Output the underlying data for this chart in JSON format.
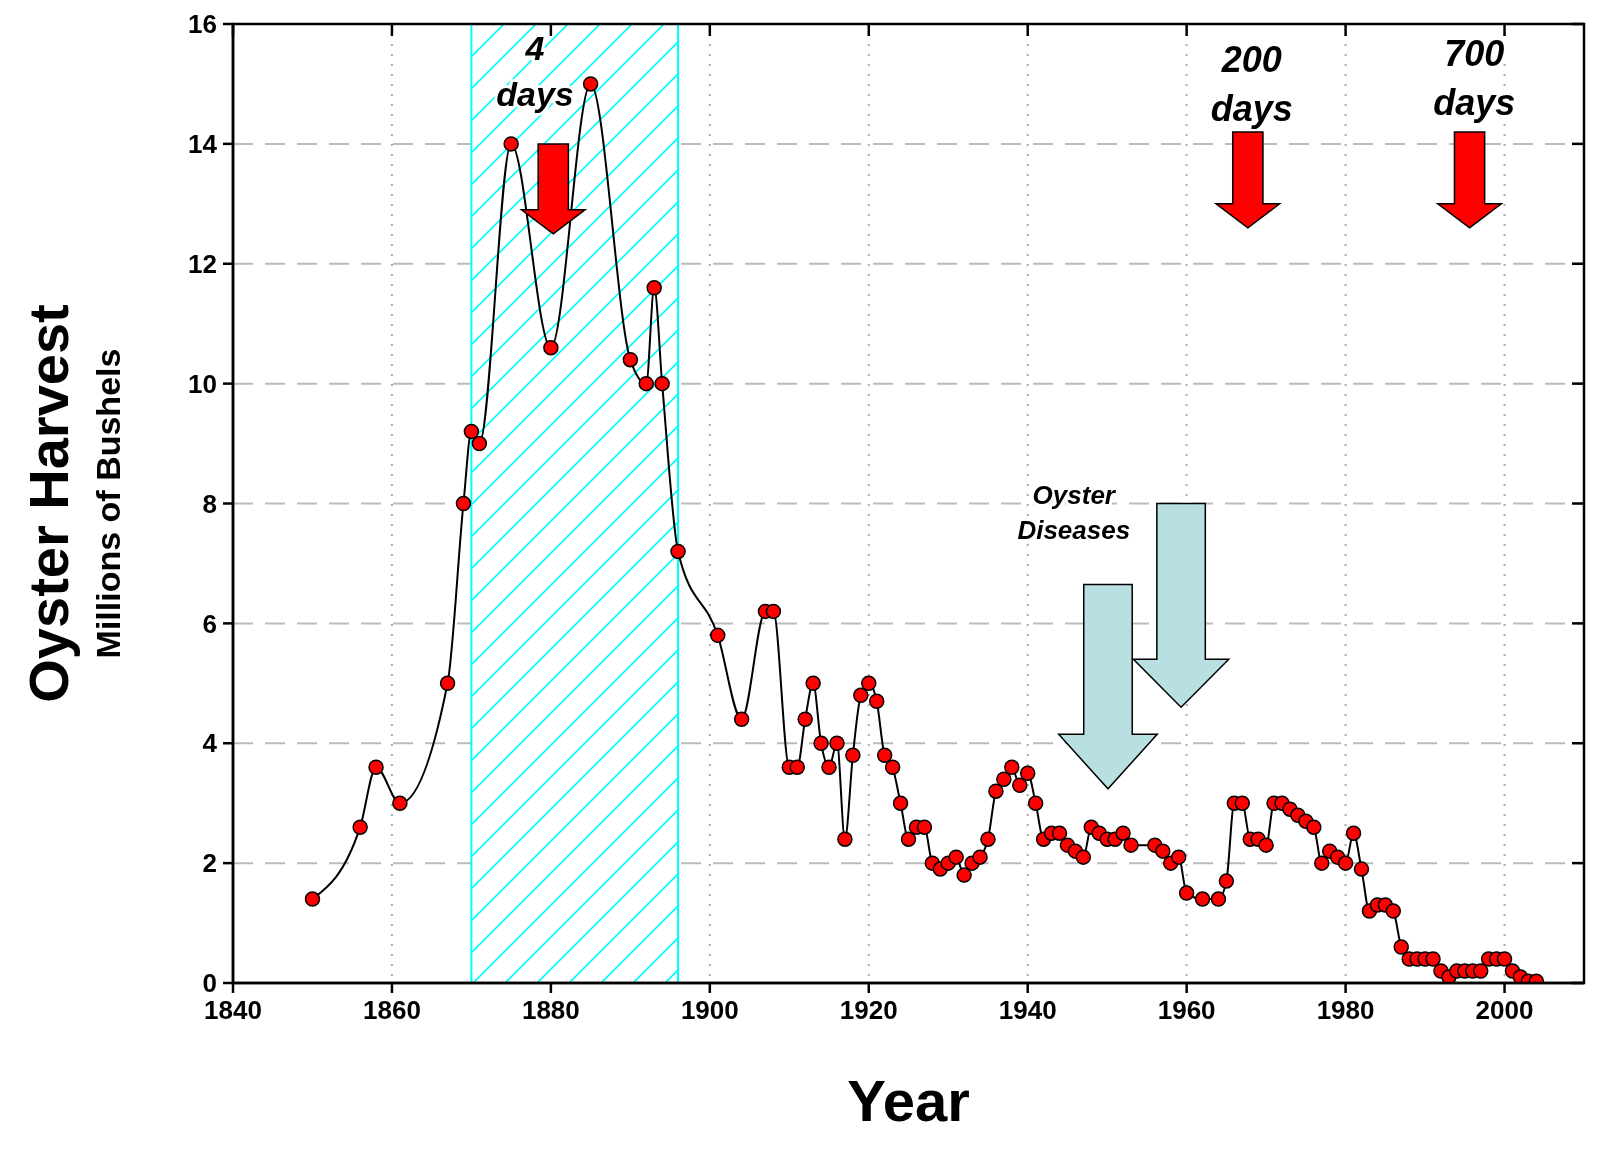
{
  "chart_data": {
    "type": "line",
    "xlabel": "Year",
    "ylabel": "Oyster Harvest\nMillions of Bushels",
    "xlim": [
      1840,
      2010
    ],
    "xticks": [
      1840,
      1860,
      1880,
      1900,
      1920,
      1940,
      1960,
      1980,
      2000
    ],
    "ylim": [
      0,
      16
    ],
    "yticks": [
      0,
      2,
      4,
      6,
      8,
      10,
      12,
      14,
      16
    ],
    "grid": true,
    "marker": "circle",
    "line_style": "solid",
    "bands": [
      {
        "axis": "x",
        "from": 1870,
        "to": 1896,
        "color": "#00ffff"
      }
    ],
    "annotations": [
      "4 days",
      "200 days",
      "700 days",
      "Oyster Diseases"
    ],
    "series": [
      {
        "color": "#ff0000",
        "x": [
          1850,
          1856,
          1858,
          1861,
          1867,
          1869,
          1870,
          1871,
          1875,
          1880,
          1885,
          1890,
          1892,
          1893,
          1894,
          1896,
          1901,
          1904,
          1907,
          1908,
          1910,
          1911,
          1912,
          1913,
          1914,
          1915,
          1916,
          1917,
          1918,
          1919,
          1920,
          1921,
          1922,
          1923,
          1924,
          1925,
          1926,
          1927,
          1928,
          1929,
          1930,
          1931,
          1932,
          1933,
          1934,
          1935,
          1936,
          1937,
          1938,
          1939,
          1940,
          1941,
          1942,
          1943,
          1944,
          1945,
          1946,
          1947,
          1948,
          1949,
          1950,
          1951,
          1952,
          1953,
          1956,
          1957,
          1958,
          1959,
          1960,
          1962,
          1964,
          1965,
          1966,
          1967,
          1968,
          1969,
          1970,
          1971,
          1972,
          1973,
          1974,
          1975,
          1976,
          1977,
          1978,
          1979,
          1980,
          1981,
          1982,
          1983,
          1984,
          1985,
          1986,
          1987,
          1988,
          1989,
          1990,
          1991,
          1992,
          1993,
          1994,
          1995,
          1996,
          1997,
          1998,
          1999,
          2000,
          2001,
          2002,
          2003,
          2004
        ],
        "values": [
          1.4,
          2.6,
          3.6,
          3.0,
          5.0,
          8.0,
          9.2,
          9.0,
          14.0,
          10.6,
          15.0,
          10.4,
          10.0,
          11.6,
          10.0,
          7.2,
          5.8,
          4.4,
          6.2,
          6.2,
          3.6,
          3.6,
          4.4,
          5.0,
          4.0,
          3.6,
          4.0,
          2.4,
          3.8,
          4.8,
          5.0,
          4.7,
          3.8,
          3.6,
          3.0,
          2.4,
          2.6,
          2.6,
          2.0,
          1.9,
          2.0,
          2.1,
          1.8,
          2.0,
          2.1,
          2.4,
          3.2,
          3.4,
          3.6,
          3.3,
          3.5,
          3.0,
          2.4,
          2.5,
          2.5,
          2.3,
          2.2,
          2.1,
          2.6,
          2.5,
          2.4,
          2.4,
          2.5,
          2.3,
          2.3,
          2.2,
          2.0,
          2.1,
          1.5,
          1.4,
          1.4,
          1.7,
          3.0,
          3.0,
          2.4,
          2.4,
          2.3,
          3.0,
          3.0,
          2.9,
          2.8,
          2.7,
          2.6,
          2.0,
          2.2,
          2.1,
          2.0,
          2.5,
          1.9,
          1.2,
          1.3,
          1.3,
          1.2,
          0.6,
          0.4,
          0.4,
          0.4,
          0.4,
          0.2,
          0.1,
          0.2,
          0.2,
          0.2,
          0.2,
          0.4,
          0.4,
          0.4,
          0.2,
          0.1,
          0.03,
          0.03
        ]
      }
    ]
  }
}
